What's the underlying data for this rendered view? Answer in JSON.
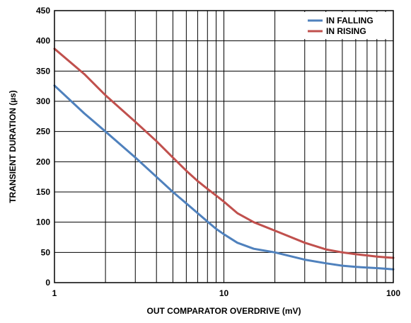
{
  "chart_data": {
    "type": "line",
    "xlabel": "OUT COMPARATOR OVERDRIVE (mV)",
    "ylabel": "TRANSIENT DURATION (µs)",
    "xscale": "log",
    "xlim": [
      1,
      100
    ],
    "ylim": [
      0,
      450
    ],
    "x_ticks": [
      1,
      10,
      100
    ],
    "x_tick_labels": [
      "1",
      "10",
      "100"
    ],
    "y_ticks": [
      0,
      50,
      100,
      150,
      200,
      250,
      300,
      350,
      400,
      450
    ],
    "y_tick_labels": [
      "0",
      "50",
      "100",
      "150",
      "200",
      "250",
      "300",
      "350",
      "400",
      "450"
    ],
    "grid": true,
    "legend_position": "top-right",
    "series": [
      {
        "name": "IN FALLING",
        "color": "#4f81bd",
        "x": [
          1,
          1.5,
          2,
          3,
          4,
          5,
          6,
          7,
          8,
          9,
          10,
          12,
          15,
          20,
          30,
          40,
          50,
          60,
          70,
          80,
          90,
          100
        ],
        "y": [
          326,
          280,
          250,
          207,
          175,
          150,
          131,
          115,
          101,
          89,
          80,
          66,
          56,
          50,
          38,
          32,
          28,
          26,
          25,
          24,
          23,
          22
        ]
      },
      {
        "name": "IN RISING",
        "color": "#c0504d",
        "x": [
          1,
          1.5,
          2,
          3,
          4,
          5,
          6,
          7,
          8,
          9,
          10,
          12,
          15,
          20,
          30,
          40,
          50,
          60,
          70,
          80,
          90,
          100
        ],
        "y": [
          387,
          345,
          310,
          266,
          234,
          207,
          185,
          168,
          155,
          144,
          134,
          115,
          100,
          86,
          66,
          55,
          50,
          47,
          45,
          43,
          42,
          41
        ]
      }
    ]
  }
}
